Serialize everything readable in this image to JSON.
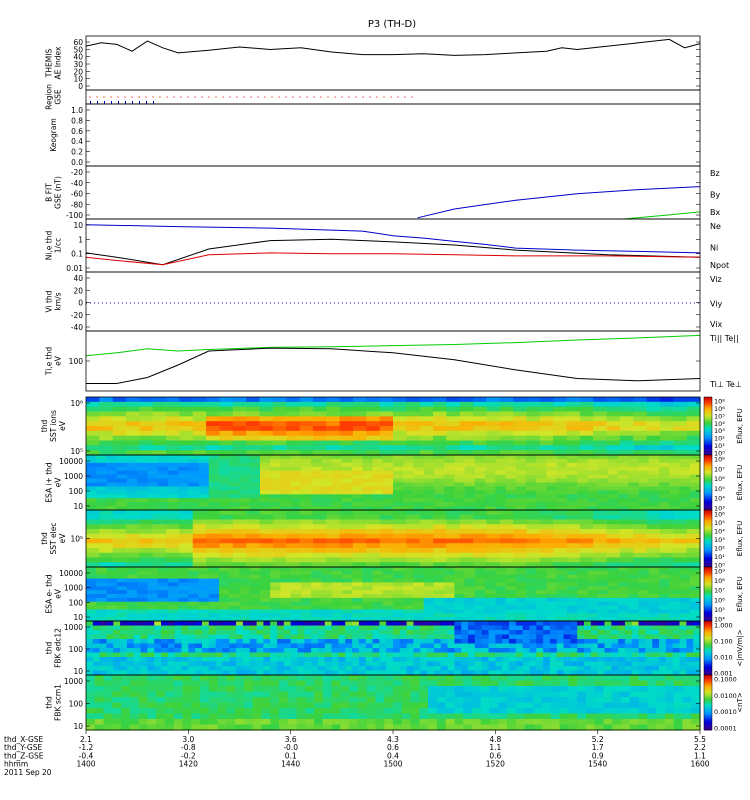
{
  "title": "P3 (TH-D)",
  "colors": {
    "black": "#000000",
    "red": "#dd0000",
    "green": "#00cc00",
    "blue": "#0000cc"
  },
  "panels": {
    "ae": {
      "label_lines": [
        "THEMIS",
        "AE Index"
      ],
      "yticks": [
        "60",
        "50",
        "40",
        "30",
        "20",
        "10",
        "0"
      ]
    },
    "region": {
      "label_lines": [
        "Region",
        "GSE"
      ]
    },
    "keogram": {
      "label_lines": [
        "Keogram"
      ],
      "yticks": [
        "1.0",
        "0.8",
        "0.6",
        "0.4",
        "0.2",
        "0.0"
      ]
    },
    "bfield": {
      "label_lines": [
        "B FIT",
        "GSE (nT)"
      ],
      "yticks": [
        "-20",
        "-40",
        "-60",
        "-80",
        "-100"
      ],
      "legend": [
        {
          "text": "Bz",
          "color": "#dd0000"
        },
        {
          "text": "By",
          "color": "#00cc00"
        },
        {
          "text": "Bx",
          "color": "#0000cc"
        }
      ]
    },
    "density": {
      "label_lines": [
        "Ni,e thd",
        "1/cc"
      ],
      "yticks": [
        "10",
        "1",
        "0.1",
        "0.01"
      ],
      "legend": [
        {
          "text": "Ne",
          "color": "#dd0000"
        },
        {
          "text": "Ni",
          "color": "#000000"
        },
        {
          "text": "Npot",
          "color": "#0000cc"
        }
      ]
    },
    "velocity": {
      "label_lines": [
        "Vi thd",
        "km/s"
      ],
      "yticks": [
        "40",
        "20",
        "0",
        "-20",
        "-40"
      ],
      "legend": [
        {
          "text": "Viz",
          "color": "#dd0000"
        },
        {
          "text": "Viy",
          "color": "#00cc00"
        },
        {
          "text": "Vix",
          "color": "#0000cc"
        }
      ]
    },
    "temp": {
      "label_lines": [
        "Ti,e thd",
        "eV"
      ],
      "yticks": [
        "100"
      ],
      "legend": [
        {
          "text": "Ti|| Te||",
          "color": "#00cc00"
        },
        {
          "text": "Ti⊥ Te⊥",
          "color": "#dd0000"
        }
      ]
    },
    "sst_ions": {
      "label_lines": [
        "thd",
        "SST ions",
        "eV"
      ],
      "yticks": [
        "10⁶",
        "10⁵"
      ],
      "cbar_label": "Eflux, EFU",
      "cbar_ticks": [
        "10⁸",
        "10⁶",
        "10⁵",
        "10⁴",
        "10³",
        "10²",
        "10¹",
        "10⁰"
      ]
    },
    "esa_ions": {
      "label_lines": [
        "ESA i+ thd",
        "eV"
      ],
      "yticks": [
        "10000",
        "1000",
        "100",
        "10"
      ],
      "cbar_label": "Eflux, EFU",
      "cbar_ticks": [
        "10⁸",
        "10⁷",
        "10⁶",
        "10⁵",
        "10⁴",
        "10³"
      ]
    },
    "sst_elec": {
      "label_lines": [
        "thd",
        "SST elec",
        "eV"
      ],
      "yticks": [
        "10⁵"
      ],
      "cbar_label": "Eflux, EFU",
      "cbar_ticks": [
        "10⁶",
        "10⁵",
        "10⁴",
        "10³",
        "10²",
        "10¹",
        "10⁰"
      ]
    },
    "esa_elec": {
      "label_lines": [
        "ESA e- thd",
        "eV"
      ],
      "yticks": [
        "10000",
        "1000",
        "100",
        "10"
      ],
      "cbar_label": "Eflux, EFU",
      "cbar_ticks": [
        "10⁹",
        "10⁸",
        "10⁷",
        "10⁶",
        "10⁵",
        "10⁴"
      ]
    },
    "fbk_e": {
      "label_lines": [
        "thd",
        "FBK edc12"
      ],
      "yticks": [
        "1000",
        "100",
        "10"
      ],
      "cbar_label": "<|mV/m|>",
      "cbar_ticks": [
        "1.000",
        "0.100",
        "0.010",
        "0.001"
      ]
    },
    "fbk_b": {
      "label_lines": [
        "thd",
        "FBK scm1"
      ],
      "yticks": [
        "1000",
        "100",
        "10"
      ],
      "cbar_label": "<nT>",
      "cbar_ticks": [
        "0.1000",
        "0.0100",
        "0.0010",
        "0.0001"
      ]
    }
  },
  "xaxis": {
    "row_labels": [
      "thd_X-GSE",
      "thd_Y-GSE",
      "thd_Z-GSE",
      "hhmm",
      "2011 Sep 20"
    ],
    "columns": [
      {
        "x": "2.1",
        "y": "-1.2",
        "z": "-0.4",
        "t": "1400"
      },
      {
        "x": "3.0",
        "y": "-0.8",
        "z": "-0.2",
        "t": "1420"
      },
      {
        "x": "3.6",
        "y": "-0.0",
        "z": "0.1",
        "t": "1440"
      },
      {
        "x": "4.3",
        "y": "0.6",
        "z": "0.4",
        "t": "1500"
      },
      {
        "x": "4.8",
        "y": "1.1",
        "z": "0.6",
        "t": "1520"
      },
      {
        "x": "5.2",
        "y": "1.7",
        "z": "0.9",
        "t": "1540"
      },
      {
        "x": "5.5",
        "y": "2.2",
        "z": "1.1",
        "t": "1600"
      }
    ]
  },
  "chart_data": [
    {
      "type": "line",
      "title": "THEMIS AE Index",
      "x_range": [
        1400,
        1600
      ],
      "ylim": [
        0,
        60
      ],
      "series": [
        {
          "name": "AE",
          "x": [
            1400,
            1405,
            1410,
            1415,
            1420,
            1425,
            1430,
            1440,
            1450,
            1460,
            1470,
            1480,
            1490,
            1500,
            1510,
            1520,
            1530,
            1540,
            1550,
            1555,
            1560,
            1570,
            1580,
            1590,
            1595,
            1600
          ],
          "y": [
            52,
            56,
            54,
            46,
            58,
            50,
            44,
            47,
            51,
            48,
            50,
            45,
            42,
            42,
            43,
            41,
            42,
            44,
            46,
            50,
            48,
            52,
            56,
            60,
            50,
            55
          ]
        }
      ]
    },
    {
      "type": "line",
      "title": "B FIT GSE (nT)",
      "x_range": [
        1400,
        1600
      ],
      "ylim": [
        -100,
        0
      ],
      "series": [
        {
          "name": "Bx",
          "x": [
            1508,
            1520,
            1540,
            1560,
            1580,
            1600
          ],
          "y": [
            -98,
            -83,
            -68,
            -57,
            -50,
            -45
          ]
        },
        {
          "name": "By",
          "x": [
            1575,
            1590,
            1600
          ],
          "y": [
            -100,
            -93,
            -88
          ]
        }
      ]
    },
    {
      "type": "line",
      "title": "Ni,e thd 1/cc",
      "x_range": [
        1400,
        1600
      ],
      "ylim": [
        0.01,
        20
      ],
      "yscale": "log",
      "series": [
        {
          "name": "Npot",
          "x": [
            1400,
            1430,
            1460,
            1490,
            1500,
            1510,
            1520,
            1530,
            1540,
            1560,
            1580,
            1600
          ],
          "y": [
            15,
            12,
            10,
            7,
            4,
            3,
            2,
            1.4,
            0.9,
            0.7,
            0.6,
            0.5
          ]
        },
        {
          "name": "Ni",
          "x": [
            1400,
            1410,
            1425,
            1440,
            1460,
            1480,
            1500,
            1520,
            1540,
            1570,
            1600
          ],
          "y": [
            0.5,
            0.3,
            0.12,
            0.8,
            2.2,
            2.6,
            1.9,
            1.3,
            0.7,
            0.4,
            0.3
          ]
        },
        {
          "name": "Ne",
          "x": [
            1400,
            1410,
            1425,
            1440,
            1460,
            1480,
            1500,
            1520,
            1540,
            1570,
            1600
          ],
          "y": [
            0.3,
            0.2,
            0.12,
            0.4,
            0.5,
            0.45,
            0.45,
            0.4,
            0.35,
            0.35,
            0.3
          ]
        }
      ]
    },
    {
      "type": "line",
      "title": "Vi thd km/s",
      "x_range": [
        1400,
        1600
      ],
      "ylim": [
        -45,
        45
      ],
      "series": [
        {
          "name": "Vix",
          "x": [
            1400,
            1600
          ],
          "y": [
            0,
            0
          ]
        }
      ]
    },
    {
      "type": "line",
      "title": "Ti,e thd eV",
      "x_range": [
        1400,
        1600
      ],
      "yscale": "log",
      "series": [
        {
          "name": "Ti||",
          "x": [
            1400,
            1410,
            1420,
            1430,
            1440,
            1460,
            1480,
            1500,
            1520,
            1540,
            1560,
            1580,
            1600
          ],
          "y": [
            650,
            800,
            1050,
            900,
            1000,
            1150,
            1200,
            1300,
            1400,
            1600,
            1900,
            2200,
            2600
          ]
        },
        {
          "name": "Ti⊥",
          "x": [
            1400,
            1410,
            1420,
            1430,
            1440,
            1460,
            1480,
            1500,
            1520,
            1540,
            1560,
            1580,
            1600
          ],
          "y": [
            100,
            100,
            150,
            350,
            900,
            1100,
            1050,
            800,
            500,
            250,
            140,
            120,
            140
          ]
        }
      ]
    },
    {
      "type": "heatmap",
      "title": "thd SST ions eV"
    },
    {
      "type": "heatmap",
      "title": "ESA i+ thd eV"
    },
    {
      "type": "heatmap",
      "title": "thd SST elec eV"
    },
    {
      "type": "heatmap",
      "title": "ESA e- thd eV"
    },
    {
      "type": "heatmap",
      "title": "thd FBK edc12"
    },
    {
      "type": "heatmap",
      "title": "thd FBK scm1"
    }
  ]
}
